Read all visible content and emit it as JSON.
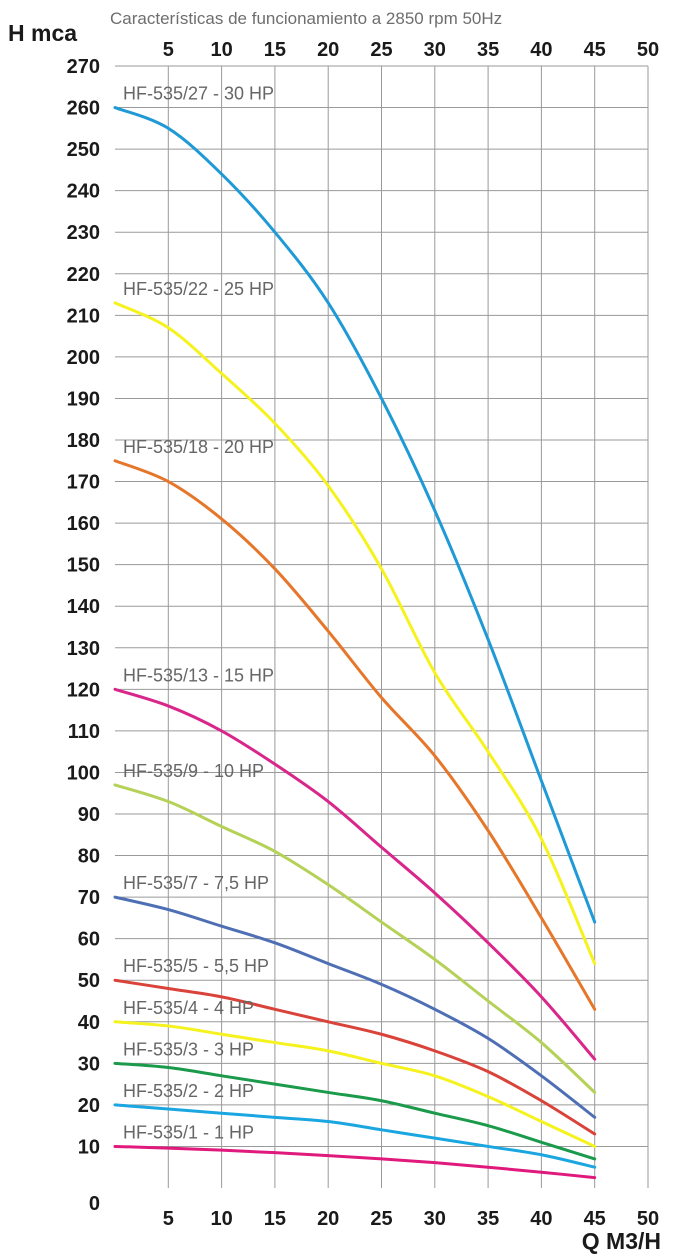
{
  "chart_data": {
    "type": "line",
    "title": "Características de funcionamiento a 2850 rpm 50Hz",
    "ylabel": "H mca",
    "xlabel": "Q M3/H",
    "xlim": [
      0,
      50
    ],
    "ylim": [
      0,
      270
    ],
    "x_ticks": [
      "5",
      "10",
      "15",
      "20",
      "25",
      "30",
      "35",
      "40",
      "45",
      "50"
    ],
    "y_ticks": [
      "0",
      "10",
      "20",
      "30",
      "40",
      "50",
      "60",
      "70",
      "80",
      "90",
      "100",
      "110",
      "120",
      "130",
      "140",
      "150",
      "160",
      "170",
      "180",
      "190",
      "200",
      "210",
      "220",
      "230",
      "240",
      "250",
      "260",
      "270"
    ],
    "grid": true,
    "x": [
      0,
      5,
      10,
      15,
      20,
      25,
      30,
      35,
      40,
      45
    ],
    "series": [
      {
        "name": "HF-535/27 - 30 HP",
        "color": "#1f9ad6",
        "values": [
          260,
          255,
          244,
          230,
          213,
          190,
          163,
          132,
          98,
          64
        ]
      },
      {
        "name": "HF-535/22 - 25 HP",
        "color": "#f5f21e",
        "values": [
          213,
          207,
          196,
          184,
          169,
          149,
          124,
          105,
          84,
          54
        ]
      },
      {
        "name": "HF-535/18 - 20 HP",
        "color": "#e6762a",
        "values": [
          175,
          170,
          161,
          149,
          134,
          118,
          104,
          86,
          65,
          43
        ]
      },
      {
        "name": "HF-535/13 - 15 HP",
        "color": "#d9268a",
        "values": [
          120,
          116,
          110,
          102,
          93,
          82,
          71,
          59,
          46,
          31
        ]
      },
      {
        "name": "HF-535/9 - 10 HP",
        "color": "#b5d157",
        "values": [
          97,
          93,
          87,
          81,
          73,
          64,
          55,
          45,
          35,
          23
        ]
      },
      {
        "name": "HF-535/7 - 7,5 HP",
        "color": "#4f6fb5",
        "values": [
          70,
          67,
          63,
          59,
          54,
          49,
          43,
          36,
          27,
          17
        ]
      },
      {
        "name": "HF-535/5 - 5,5 HP",
        "color": "#d9433a",
        "values": [
          50,
          48,
          46,
          43,
          40,
          37,
          33,
          28,
          21,
          13
        ]
      },
      {
        "name": "HF-535/4 - 4 HP",
        "color": "#f5f21e",
        "values": [
          40,
          39,
          37,
          35,
          33,
          30,
          27,
          22,
          16,
          10
        ]
      },
      {
        "name": "HF-535/3 - 3 HP",
        "color": "#1a9a4a",
        "values": [
          30,
          29,
          27,
          25,
          23,
          21,
          18,
          15,
          11,
          7
        ]
      },
      {
        "name": "HF-535/2 - 2 HP",
        "color": "#1aa6e0",
        "values": [
          20,
          19,
          18,
          17,
          16,
          14,
          12,
          10,
          8,
          5
        ]
      },
      {
        "name": "HF-535/1 - 1 HP",
        "color": "#e0197d",
        "values": [
          10,
          9.6,
          9.1,
          8.5,
          7.8,
          7,
          6.1,
          5,
          3.8,
          2.5
        ]
      }
    ]
  }
}
